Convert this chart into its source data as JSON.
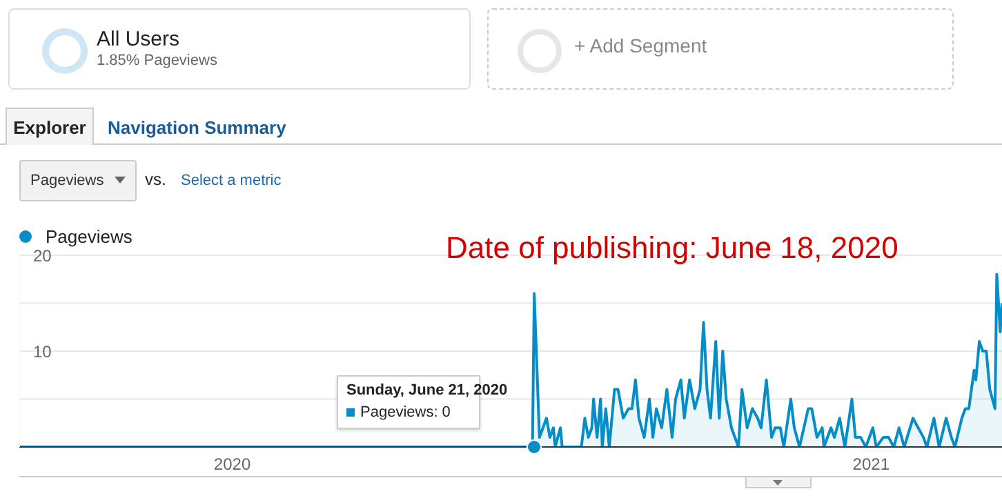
{
  "chart_data": {
    "type": "area",
    "title": "Date of publishing: June 18, 2020",
    "x": [
      "2019-09-01",
      "2020-06-21",
      "2020-06-22",
      "2020-06-25",
      "2020-06-27",
      "2020-06-29",
      "2020-07-01",
      "2020-07-03",
      "2020-07-04",
      "2020-07-07",
      "2020-07-08",
      "2020-07-19",
      "2020-07-21",
      "2020-07-23",
      "2020-07-25",
      "2020-07-26",
      "2020-07-28",
      "2020-07-30",
      "2020-07-31",
      "2020-08-02",
      "2020-08-04",
      "2020-08-07",
      "2020-08-09",
      "2020-08-12",
      "2020-08-15",
      "2020-08-17",
      "2020-08-19",
      "2020-08-21",
      "2020-08-24",
      "2020-08-27",
      "2020-08-29",
      "2020-08-31",
      "2020-09-03",
      "2020-09-06",
      "2020-09-09",
      "2020-09-11",
      "2020-09-14",
      "2020-09-16",
      "2020-09-19",
      "2020-09-22",
      "2020-09-25",
      "2020-09-27",
      "2020-09-29",
      "2020-10-01",
      "2020-10-04",
      "2020-10-06",
      "2020-10-08",
      "2020-10-10",
      "2020-10-13",
      "2020-10-17",
      "2020-10-19",
      "2020-10-22",
      "2020-10-25",
      "2020-10-28",
      "2020-10-30",
      "2020-11-02",
      "2020-11-05",
      "2020-11-07",
      "2020-11-10",
      "2020-11-12",
      "2020-11-16",
      "2020-11-18",
      "2020-11-21",
      "2020-11-26",
      "2020-11-28",
      "2020-12-01",
      "2020-12-04",
      "2020-12-05",
      "2020-12-09",
      "2020-12-11",
      "2020-12-14",
      "2020-12-17",
      "2020-12-21",
      "2020-12-23",
      "2020-12-26",
      "2020-12-29",
      "2021-01-02",
      "2021-01-04",
      "2021-01-08",
      "2021-01-11",
      "2021-01-14",
      "2021-01-17",
      "2021-01-20",
      "2021-01-25",
      "2021-01-28",
      "2021-01-31",
      "2021-02-02",
      "2021-02-06",
      "2021-02-09",
      "2021-02-13",
      "2021-02-16",
      "2021-02-18",
      "2021-02-22",
      "2021-02-24",
      "2021-02-26",
      "2021-03-01",
      "2021-03-02",
      "2021-03-04",
      "2021-03-06",
      "2021-03-08",
      "2021-03-10",
      "2021-03-13",
      "2021-03-14",
      "2021-03-16",
      "2021-03-17"
    ],
    "series": [
      {
        "name": "Pageviews",
        "color": "#058dc7",
        "values": [
          0,
          0,
          16,
          1,
          2,
          3,
          1,
          2,
          0,
          2,
          0,
          0,
          3,
          1,
          2,
          5,
          1,
          5,
          0,
          4,
          0,
          6,
          6,
          3,
          4,
          4,
          7,
          3,
          1,
          5,
          1,
          4,
          2,
          6,
          1,
          5,
          7,
          3,
          7,
          4,
          6,
          13,
          6,
          3,
          11,
          3,
          10,
          5,
          2,
          0,
          6,
          2,
          4,
          3,
          2,
          7,
          1,
          2,
          2,
          0,
          5,
          2,
          0,
          4,
          4,
          1,
          2,
          0,
          2,
          1,
          3,
          0,
          5,
          1,
          1,
          0,
          2,
          0,
          1,
          1,
          0,
          2,
          0,
          3,
          2,
          1,
          0,
          3,
          0,
          3,
          1,
          0,
          3,
          4,
          4,
          8,
          7,
          11,
          10,
          10,
          6,
          4,
          18,
          12,
          15
        ]
      }
    ],
    "xlim": [
      "2019-09-01",
      "2021-03-17"
    ],
    "xticks": [
      {
        "value": "2020-01-01",
        "label": "2020"
      },
      {
        "value": "2021-01-01",
        "label": "2021"
      }
    ],
    "ylim": [
      0,
      20
    ],
    "yticks": [
      {
        "value": 0,
        "label": null
      },
      {
        "value": 5,
        "label": null
      },
      10,
      {
        "value": 15,
        "label": null
      },
      20
    ],
    "grid": "y",
    "legend": "top left",
    "annotations": [
      "All Users",
      "1.85% Pageviews",
      "+ Add Segment",
      "Explorer",
      "Navigation Summary",
      "Pageviews",
      "vs.",
      "Select a metric",
      "Sunday, June 21, 2020",
      "Pageviews: 0"
    ]
  }
}
